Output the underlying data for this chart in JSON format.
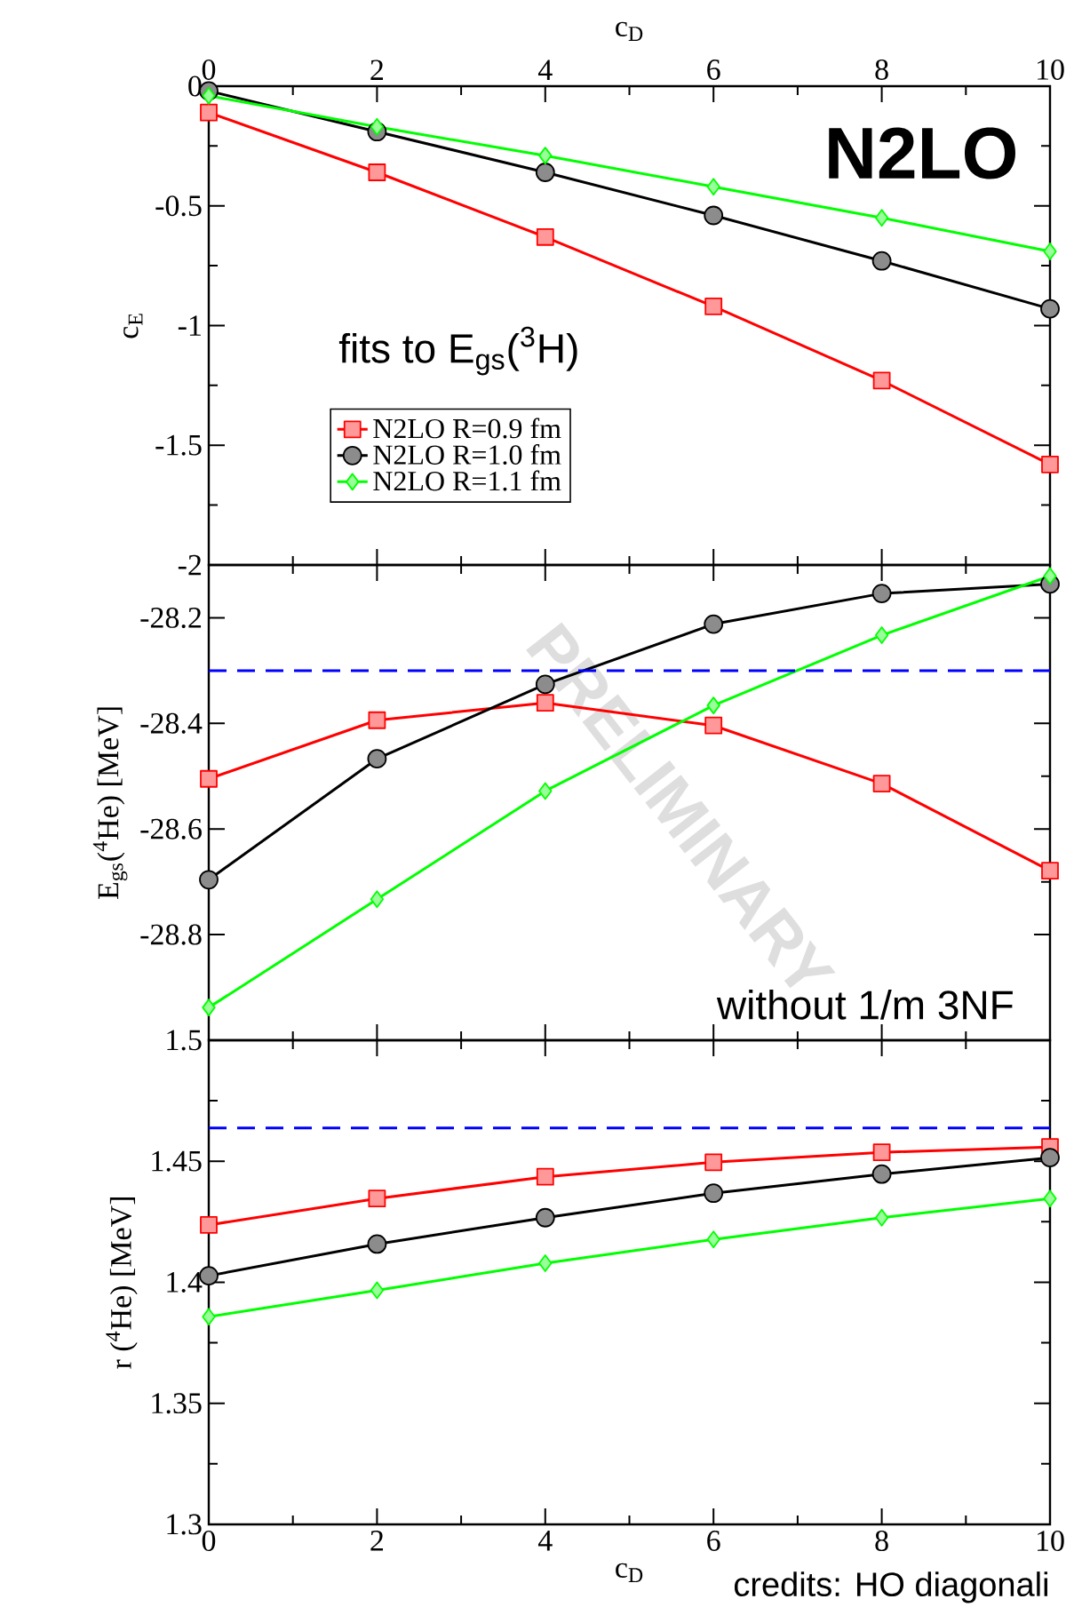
{
  "chart_data": [
    {
      "type": "line",
      "xlim": [
        0,
        10
      ],
      "x2lim": [
        0,
        10
      ],
      "x2ticks": [
        0,
        2,
        4,
        6,
        8,
        10
      ],
      "x2label": "c$_{D}$",
      "ylabel": "c$_{E}$",
      "ylim": [
        -2,
        0
      ],
      "yticks": [
        -2,
        -1.5,
        -1,
        -0.5,
        0
      ],
      "tick_labels": "y",
      "legend": "bottom left",
      "x": [
        0,
        2,
        4,
        6,
        8,
        10
      ],
      "annotations": [
        "**N2LO**",
        "fits to E$_{gs}$($^{3}$H)"
      ],
      "series": [
        {
          "name": "N2LO R=0.9 fm",
          "color": "#ff0000",
          "marker": "square",
          "values": [
            -0.11,
            -0.36,
            -0.63,
            -0.92,
            -1.23,
            -1.58
          ]
        },
        {
          "name": "N2LO R=1.0 fm",
          "color": "#000000",
          "marker": "circle",
          "values": [
            -0.02,
            -0.19,
            -0.36,
            -0.54,
            -0.73,
            -0.93
          ]
        },
        {
          "name": "N2LO R=1.1 fm",
          "color": "#00ff00",
          "marker": "diamond",
          "values": [
            -0.04,
            -0.17,
            -0.29,
            -0.42,
            -0.55,
            -0.69
          ]
        }
      ]
    },
    {
      "type": "line",
      "xlim": [
        0,
        10
      ],
      "ylabel": "E$_{gs}$($^{4}$He) [MeV]",
      "ylim": [
        -29,
        -28.1
      ],
      "yticks": [
        -28.8,
        -28.6,
        -28.4,
        -28.2
      ],
      "tick_labels": "y",
      "x": [
        0,
        2,
        4,
        6,
        8,
        10
      ],
      "annotations": [
        "without 1/m 3NF",
        "PRELIMINARY"
      ],
      "ref_lines": [
        {
          "axis": "y",
          "value": -28.3,
          "color": "#0000ff",
          "line_style": "dashed"
        }
      ],
      "series": [
        {
          "color": "#ff0000",
          "marker": "square",
          "values": [
            -28.505,
            -28.394,
            -28.361,
            -28.404,
            -28.514,
            -28.679
          ]
        },
        {
          "color": "#000000",
          "marker": "circle",
          "values": [
            -28.696,
            -28.467,
            -28.326,
            -28.212,
            -28.154,
            -28.136
          ]
        },
        {
          "color": "#00ff00",
          "marker": "diamond",
          "values": [
            -28.938,
            -28.733,
            -28.528,
            -28.366,
            -28.233,
            -28.121
          ]
        }
      ]
    },
    {
      "type": "line",
      "xlim": [
        0,
        10
      ],
      "xticks": [
        0,
        2,
        4,
        6,
        8,
        10
      ],
      "xlabel": "c$_{D}$",
      "ylabel": "r ($^{4}$He) [MeV]",
      "ylim": [
        1.3,
        1.5
      ],
      "yticks": [
        1.3,
        1.35,
        1.4,
        1.45,
        1.5
      ],
      "x": [
        0,
        2,
        4,
        6,
        8,
        10
      ],
      "annotations": [
        "credits: HO diagonali"
      ],
      "ref_lines": [
        {
          "axis": "y",
          "value": 1.4638,
          "color": "#0000ff",
          "line_style": "dashed"
        }
      ],
      "series": [
        {
          "color": "#ff0000",
          "marker": "square",
          "values": [
            1.4237,
            1.4346,
            1.4436,
            1.4496,
            1.4537,
            1.4559
          ]
        },
        {
          "color": "#000000",
          "marker": "circle",
          "values": [
            1.4027,
            1.4158,
            1.4267,
            1.4368,
            1.4447,
            1.4515
          ]
        },
        {
          "color": "#00ff00",
          "marker": "diamond",
          "values": [
            1.3858,
            1.3967,
            1.4079,
            1.4177,
            1.4267,
            1.4346
          ]
        }
      ]
    }
  ]
}
